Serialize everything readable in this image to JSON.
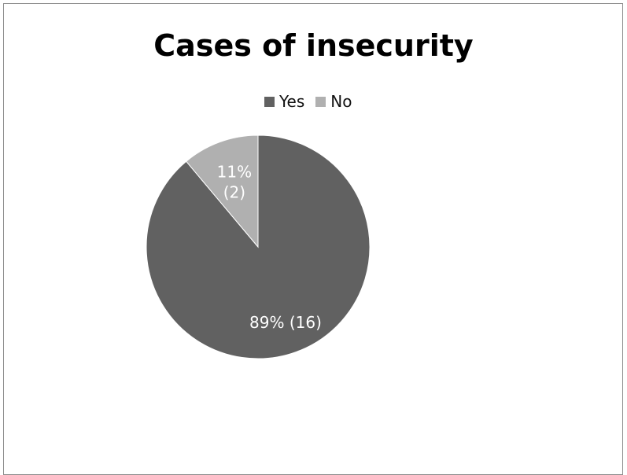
{
  "chart_data": {
    "type": "pie",
    "title": "Cases of insecurity",
    "categories": [
      "Yes",
      "No"
    ],
    "values": [
      16,
      2
    ],
    "percentages": [
      89,
      11
    ],
    "data_labels": [
      {
        "lines": [
          "89% (16)"
        ]
      },
      {
        "lines": [
          "11%",
          "(2)"
        ]
      }
    ],
    "colors": [
      "#616161",
      "#b0b0b0"
    ],
    "legend": {
      "placement": "top",
      "entries": [
        "Yes",
        "No"
      ]
    },
    "start_angle_deg": 0,
    "direction": "clockwise"
  }
}
